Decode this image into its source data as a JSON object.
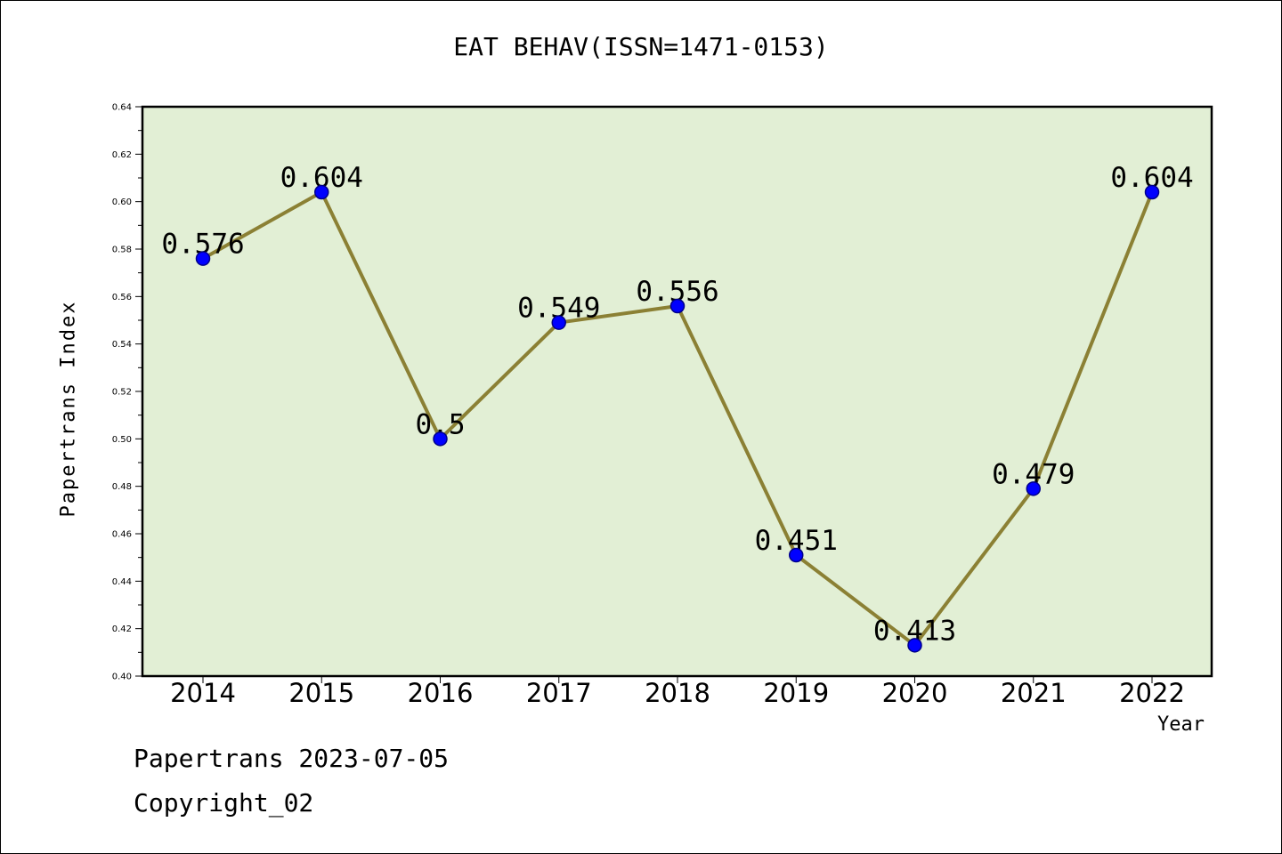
{
  "chart_data": {
    "type": "line",
    "title": "EAT BEHAV(ISSN=1471-0153)",
    "xlabel": "Year",
    "ylabel": "Papertrans Index",
    "categories": [
      "2014",
      "2015",
      "2016",
      "2017",
      "2018",
      "2019",
      "2020",
      "2021",
      "2022"
    ],
    "series": [
      {
        "values": [
          0.576,
          0.604,
          0.5,
          0.549,
          0.556,
          0.451,
          0.413,
          0.479,
          0.604
        ]
      }
    ],
    "data_labels": [
      "0.576",
      "0.604",
      "0.5",
      "0.549",
      "0.556",
      "0.451",
      "0.413",
      "0.479",
      "0.604"
    ],
    "ylim": [
      0.4,
      0.64
    ],
    "yticks": [
      "0.40",
      "0.42",
      "0.44",
      "0.46",
      "0.48",
      "0.50",
      "0.52",
      "0.54",
      "0.56",
      "0.58",
      "0.60",
      "0.62",
      "0.64"
    ],
    "grid": false,
    "legend": "none",
    "colors": {
      "plot_background": "#e2efd5",
      "line": "#8b8034",
      "marker": "#0000ff",
      "marker_edge": "#00008b"
    }
  },
  "footer": {
    "line1": "Papertrans 2023-07-05",
    "line2": "Copyright_02"
  }
}
